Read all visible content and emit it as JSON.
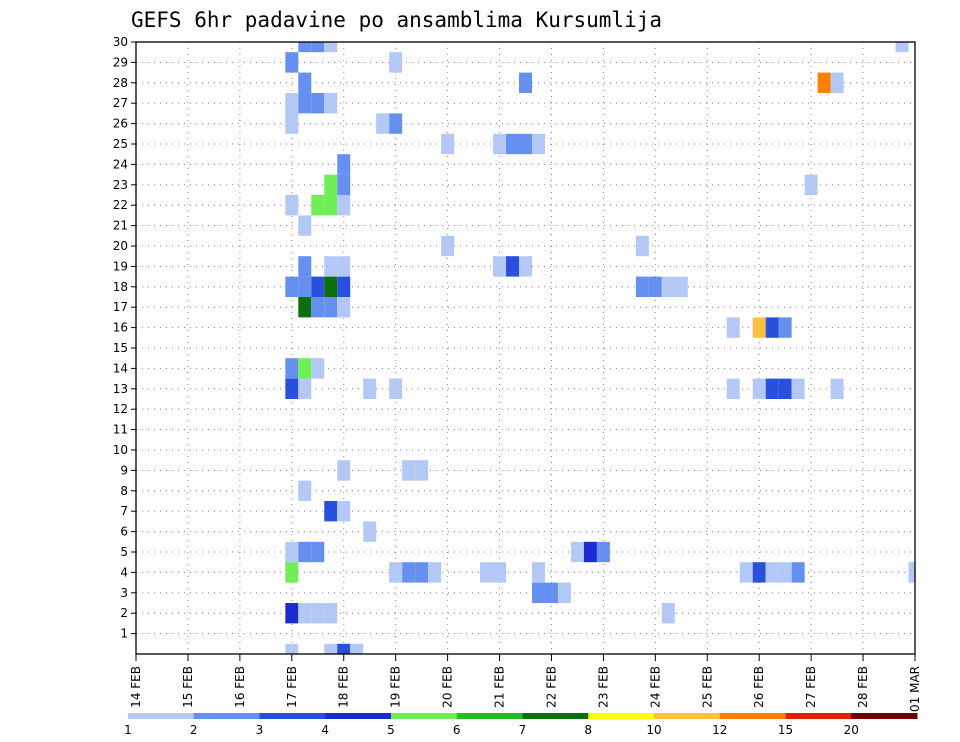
{
  "chart_data": {
    "type": "heatmap",
    "title": "GEFS 6hr padavine po ansamblima Kursumlija",
    "xlabel": "",
    "ylabel": "",
    "x_tick_labels": [
      "14 FEB",
      "15 FEB",
      "16 FEB",
      "17 FEB",
      "18 FEB",
      "19 FEB",
      "20 FEB",
      "21 FEB",
      "22 FEB",
      "23 FEB",
      "24 FEB",
      "25 FEB",
      "26 FEB",
      "27 FEB",
      "28 FEB",
      "01 MAR"
    ],
    "y_tick_labels": [
      "1",
      "2",
      "3",
      "4",
      "5",
      "6",
      "7",
      "8",
      "9",
      "10",
      "11",
      "12",
      "13",
      "14",
      "15",
      "16",
      "17",
      "18",
      "19",
      "20",
      "21",
      "22",
      "23",
      "24",
      "25",
      "26",
      "27",
      "28",
      "29",
      "30"
    ],
    "x_range_days": [
      0,
      15
    ],
    "y_range_members": [
      0,
      30
    ],
    "time_step_days": 0.25,
    "grid": true,
    "legend_placement": "bottom",
    "legend": {
      "labels": [
        "1",
        "2",
        "3",
        "4",
        "5",
        "6",
        "7",
        "8",
        "10",
        "12",
        "15",
        "20"
      ],
      "colors": [
        "#b4c8f5",
        "#6690f0",
        "#2850dc",
        "#1a2ccf",
        "#70ee55",
        "#1fc01f",
        "#0b700b",
        "#ffff00",
        "#ffc040",
        "#ff8000",
        "#e02000",
        "#700000"
      ]
    },
    "cells": [
      {
        "m": 0,
        "t": [
          [
            3.0,
            1
          ],
          [
            3.75,
            1
          ],
          [
            4.0,
            3
          ],
          [
            4.25,
            1
          ]
        ]
      },
      {
        "m": 2,
        "t": [
          [
            3.0,
            4
          ],
          [
            3.25,
            1
          ],
          [
            3.5,
            1
          ],
          [
            3.75,
            1
          ],
          [
            10.25,
            1
          ]
        ]
      },
      {
        "m": 3,
        "t": [
          [
            7.75,
            2
          ],
          [
            8.0,
            2
          ],
          [
            8.25,
            1
          ]
        ]
      },
      {
        "m": 4,
        "t": [
          [
            3.0,
            5
          ],
          [
            5.0,
            1
          ],
          [
            5.25,
            2
          ],
          [
            5.5,
            2
          ],
          [
            5.75,
            1
          ],
          [
            6.75,
            1
          ],
          [
            7.0,
            1
          ],
          [
            7.75,
            1
          ],
          [
            11.75,
            1
          ],
          [
            12.0,
            3
          ],
          [
            12.25,
            1
          ],
          [
            12.5,
            1
          ],
          [
            12.75,
            2
          ],
          [
            15.0,
            1
          ]
        ]
      },
      {
        "m": 5,
        "t": [
          [
            3.0,
            1
          ],
          [
            3.25,
            2
          ],
          [
            3.5,
            2
          ],
          [
            8.5,
            1
          ],
          [
            8.75,
            4
          ],
          [
            9.0,
            2
          ]
        ]
      },
      {
        "m": 6,
        "t": [
          [
            4.5,
            1
          ]
        ]
      },
      {
        "m": 7,
        "t": [
          [
            3.75,
            3
          ],
          [
            4.0,
            1
          ]
        ]
      },
      {
        "m": 8,
        "t": [
          [
            3.25,
            1
          ]
        ]
      },
      {
        "m": 9,
        "t": [
          [
            4.0,
            1
          ],
          [
            5.25,
            1
          ],
          [
            5.5,
            1
          ]
        ]
      },
      {
        "m": 13,
        "t": [
          [
            3.0,
            3
          ],
          [
            3.25,
            1
          ],
          [
            4.5,
            1
          ],
          [
            5.0,
            1
          ],
          [
            11.5,
            1
          ],
          [
            12.0,
            1
          ],
          [
            12.25,
            3
          ],
          [
            12.5,
            3
          ],
          [
            12.75,
            1
          ],
          [
            13.5,
            1
          ]
        ]
      },
      {
        "m": 14,
        "t": [
          [
            3.0,
            2
          ],
          [
            3.25,
            5
          ],
          [
            3.5,
            1
          ]
        ]
      },
      {
        "m": 16,
        "t": [
          [
            11.5,
            1
          ],
          [
            12.0,
            9
          ],
          [
            12.25,
            3
          ],
          [
            12.5,
            2
          ]
        ]
      },
      {
        "m": 17,
        "t": [
          [
            3.25,
            7
          ],
          [
            3.5,
            2
          ],
          [
            3.75,
            2
          ],
          [
            4.0,
            1
          ]
        ]
      },
      {
        "m": 18,
        "t": [
          [
            3.0,
            2
          ],
          [
            3.25,
            2
          ],
          [
            3.5,
            3
          ],
          [
            3.75,
            7
          ],
          [
            4.0,
            3
          ],
          [
            9.75,
            2
          ],
          [
            10.0,
            2
          ],
          [
            10.25,
            1
          ],
          [
            10.5,
            1
          ]
        ]
      },
      {
        "m": 19,
        "t": [
          [
            3.25,
            2
          ],
          [
            3.75,
            1
          ],
          [
            4.0,
            1
          ],
          [
            7.0,
            1
          ],
          [
            7.25,
            3
          ],
          [
            7.5,
            1
          ]
        ]
      },
      {
        "m": 20,
        "t": [
          [
            6.0,
            1
          ],
          [
            9.75,
            1
          ]
        ]
      },
      {
        "m": 21,
        "t": [
          [
            3.25,
            1
          ]
        ]
      },
      {
        "m": 22,
        "t": [
          [
            3.0,
            1
          ],
          [
            3.5,
            5
          ],
          [
            3.75,
            5
          ],
          [
            4.0,
            1
          ]
        ]
      },
      {
        "m": 23,
        "t": [
          [
            3.75,
            5
          ],
          [
            4.0,
            2
          ],
          [
            13.0,
            1
          ]
        ]
      },
      {
        "m": 24,
        "t": [
          [
            4.0,
            2
          ]
        ]
      },
      {
        "m": 25,
        "t": [
          [
            6.0,
            1
          ],
          [
            7.0,
            1
          ],
          [
            7.25,
            2
          ],
          [
            7.5,
            2
          ],
          [
            7.75,
            1
          ]
        ]
      },
      {
        "m": 26,
        "t": [
          [
            3.0,
            1
          ],
          [
            4.75,
            1
          ],
          [
            5.0,
            2
          ]
        ]
      },
      {
        "m": 27,
        "t": [
          [
            3.0,
            1
          ],
          [
            3.25,
            2
          ],
          [
            3.5,
            2
          ],
          [
            3.75,
            1
          ]
        ]
      },
      {
        "m": 28,
        "t": [
          [
            3.25,
            2
          ],
          [
            7.5,
            2
          ],
          [
            13.25,
            10
          ],
          [
            13.5,
            1
          ]
        ]
      },
      {
        "m": 29,
        "t": [
          [
            3.0,
            2
          ],
          [
            5.0,
            1
          ]
        ]
      },
      {
        "m": 30,
        "t": [
          [
            3.25,
            2
          ],
          [
            3.5,
            2
          ],
          [
            3.75,
            1
          ],
          [
            14.75,
            1
          ]
        ]
      }
    ]
  }
}
